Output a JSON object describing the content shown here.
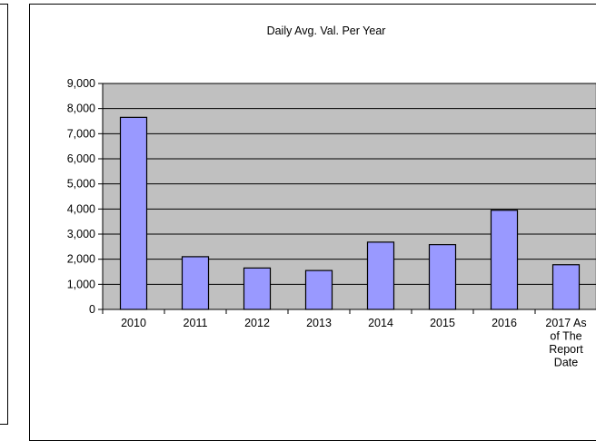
{
  "chart_data": {
    "type": "bar",
    "title": "Daily Avg. Val. Per Year",
    "xlabel": "",
    "ylabel": "",
    "categories": [
      "2010",
      "2011",
      "2012",
      "2013",
      "2014",
      "2015",
      "2016",
      "2017 As of The Report Date"
    ],
    "category_label_lines": [
      [
        "2010"
      ],
      [
        "2011"
      ],
      [
        "2012"
      ],
      [
        "2013"
      ],
      [
        "2014"
      ],
      [
        "2015"
      ],
      [
        "2016"
      ],
      [
        "2017 As",
        "of The",
        "Report",
        "Date"
      ]
    ],
    "values": [
      7650,
      2100,
      1650,
      1550,
      2680,
      2580,
      3950,
      1780
    ],
    "ylim": [
      0,
      9000
    ],
    "yticks": [
      0,
      1000,
      2000,
      3000,
      4000,
      5000,
      6000,
      7000,
      8000,
      9000
    ],
    "ytick_labels": [
      "0",
      "1,000",
      "2,000",
      "3,000",
      "4,000",
      "5,000",
      "6,000",
      "7,000",
      "8,000",
      "9,000"
    ],
    "grid": true,
    "legend": "none",
    "colors": {
      "bar": "#9999ff",
      "plot_background": "#c0c0c0",
      "grid": "#000000"
    }
  }
}
